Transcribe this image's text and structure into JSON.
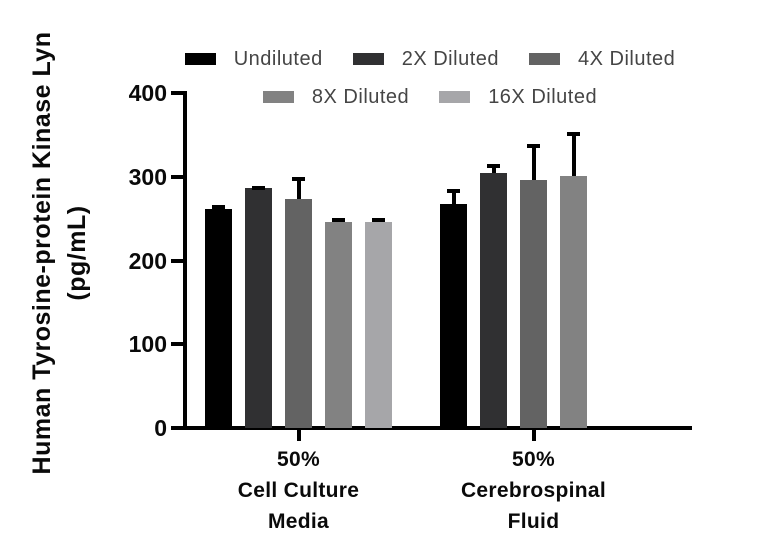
{
  "chart_data": {
    "type": "bar",
    "title": "",
    "ylabel_lines": [
      "Human Tyrosine-protein Kinase Lyn",
      "(pg/mL)"
    ],
    "xlabel": "",
    "ylim": [
      0,
      400
    ],
    "yticks": [
      0,
      100,
      200,
      300,
      400
    ],
    "grid": false,
    "legend_position": "top",
    "error_bars": "upper-sd",
    "categories": [
      {
        "lines": [
          "50%",
          "Cell Culture",
          "Media"
        ]
      },
      {
        "lines": [
          "50%",
          "Cerebrospinal",
          "Fluid"
        ]
      }
    ],
    "series": [
      {
        "name": "Undiluted",
        "color": "#000000",
        "values": [
          261,
          267
        ],
        "errors": [
          5,
          18
        ]
      },
      {
        "name": "2X Diluted",
        "color": "#303032",
        "values": [
          286,
          304
        ],
        "errors": [
          3,
          11
        ]
      },
      {
        "name": "4X Diluted",
        "color": "#636363",
        "values": [
          273,
          296
        ],
        "errors": [
          27,
          43
        ]
      },
      {
        "name": "8X Diluted",
        "color": "#828282",
        "values": [
          246,
          301
        ],
        "errors": [
          5,
          53
        ]
      },
      {
        "name": "16X Diluted",
        "color": "#a6a6a9",
        "values": [
          246,
          null
        ],
        "errors": [
          5,
          null
        ]
      }
    ],
    "legend_rows": [
      [
        0,
        1,
        2
      ],
      [
        3,
        4
      ]
    ]
  },
  "colors": {
    "axis": "#000000",
    "legend_text": "#454545",
    "label_text": "#0a0a0a",
    "background": "#ffffff"
  }
}
